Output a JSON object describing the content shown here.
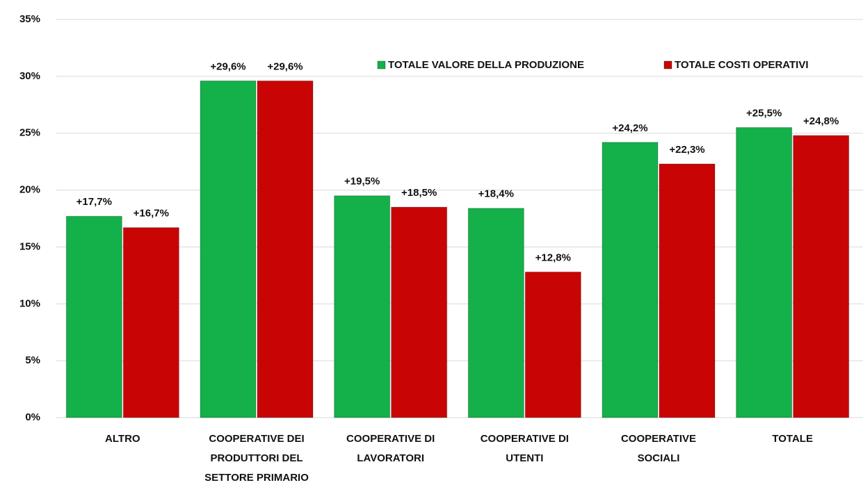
{
  "chart_data": {
    "type": "bar",
    "categories": [
      "ALTRO",
      "COOPERATIVE DEI PRODUTTORI DEL SETTORE PRIMARIO",
      "COOPERATIVE DI LAVORATORI",
      "COOPERATIVE DI UTENTI",
      "COOPERATIVE SOCIALI",
      "TOTALE"
    ],
    "series": [
      {
        "name": "TOTALE VALORE DELLA PRODUZIONE",
        "color": "#14b04a",
        "values": [
          17.7,
          29.6,
          19.5,
          18.4,
          24.2,
          25.5
        ],
        "value_labels": [
          "+17,7%",
          "+29,6%",
          "+19,5%",
          "+18,4%",
          "+24,2%",
          "+25,5%"
        ]
      },
      {
        "name": "TOTALE COSTI OPERATIVI",
        "color": "#c80404",
        "values": [
          16.7,
          29.6,
          18.5,
          12.8,
          22.3,
          24.8
        ],
        "value_labels": [
          "+16,7%",
          "+29,6%",
          "+18,5%",
          "+12,8%",
          "+22,3%",
          "+24,8%"
        ]
      }
    ],
    "ylim": [
      0,
      35
    ],
    "yticks": [
      {
        "value": 0,
        "label": "0%"
      },
      {
        "value": 5,
        "label": "5%"
      },
      {
        "value": 10,
        "label": "10%"
      },
      {
        "value": 15,
        "label": "15%"
      },
      {
        "value": 20,
        "label": "20%"
      },
      {
        "value": 25,
        "label": "25%"
      },
      {
        "value": 30,
        "label": "30%"
      },
      {
        "value": 35,
        "label": "35%"
      }
    ],
    "grid": true
  }
}
